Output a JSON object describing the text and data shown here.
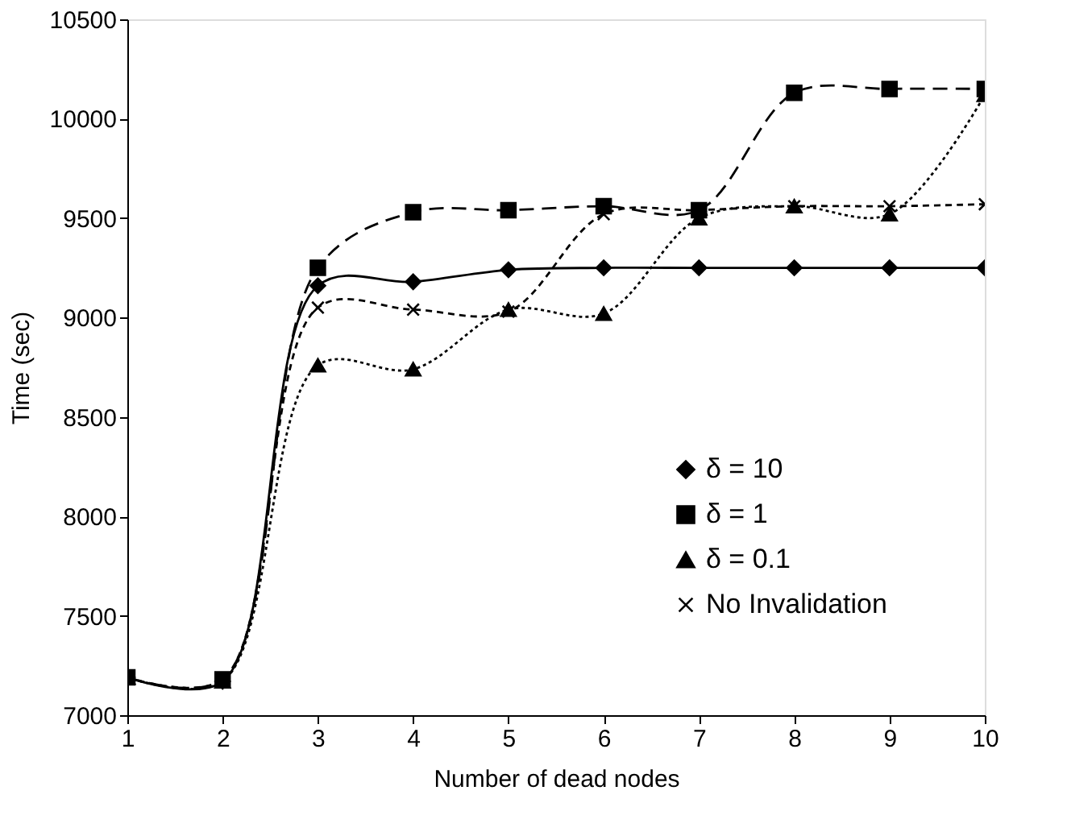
{
  "chart_data": {
    "type": "line",
    "xlabel": "Number of dead nodes",
    "ylabel": "Time (sec)",
    "x": [
      1,
      2,
      3,
      4,
      5,
      6,
      7,
      8,
      9,
      10
    ],
    "xlim": [
      1,
      10
    ],
    "xticks": [
      1,
      2,
      3,
      4,
      5,
      6,
      7,
      8,
      9,
      10
    ],
    "ylim": [
      7000,
      10500
    ],
    "yticks": [
      7000,
      7500,
      8000,
      8500,
      9000,
      9500,
      10000,
      10500
    ],
    "grid": false,
    "legend": "bottom right",
    "series": [
      {
        "name": "δ = 10",
        "color": "#000000",
        "marker": "diamond",
        "line_style": "solid",
        "values": [
          7190,
          7170,
          9160,
          9180,
          9240,
          9250,
          9250,
          9250,
          9250,
          9250
        ]
      },
      {
        "name": "δ = 1",
        "color": "#000000",
        "marker": "square",
        "line_style": "dashed",
        "values": [
          7190,
          7180,
          9250,
          9530,
          9540,
          9560,
          9540,
          10130,
          10150,
          10150
        ]
      },
      {
        "name": "δ = 0.1",
        "color": "#000000",
        "marker": "triangle",
        "line_style": "dotted",
        "values": [
          7190,
          7170,
          8760,
          8740,
          9040,
          9020,
          9500,
          9560,
          9520,
          10120
        ]
      },
      {
        "name": "No Invalidation",
        "color": "#000000",
        "marker": "cross",
        "line_style": "dashed_short",
        "values": [
          7190,
          7180,
          9050,
          9040,
          9030,
          9520,
          9540,
          9560,
          9560,
          9570
        ]
      }
    ]
  }
}
